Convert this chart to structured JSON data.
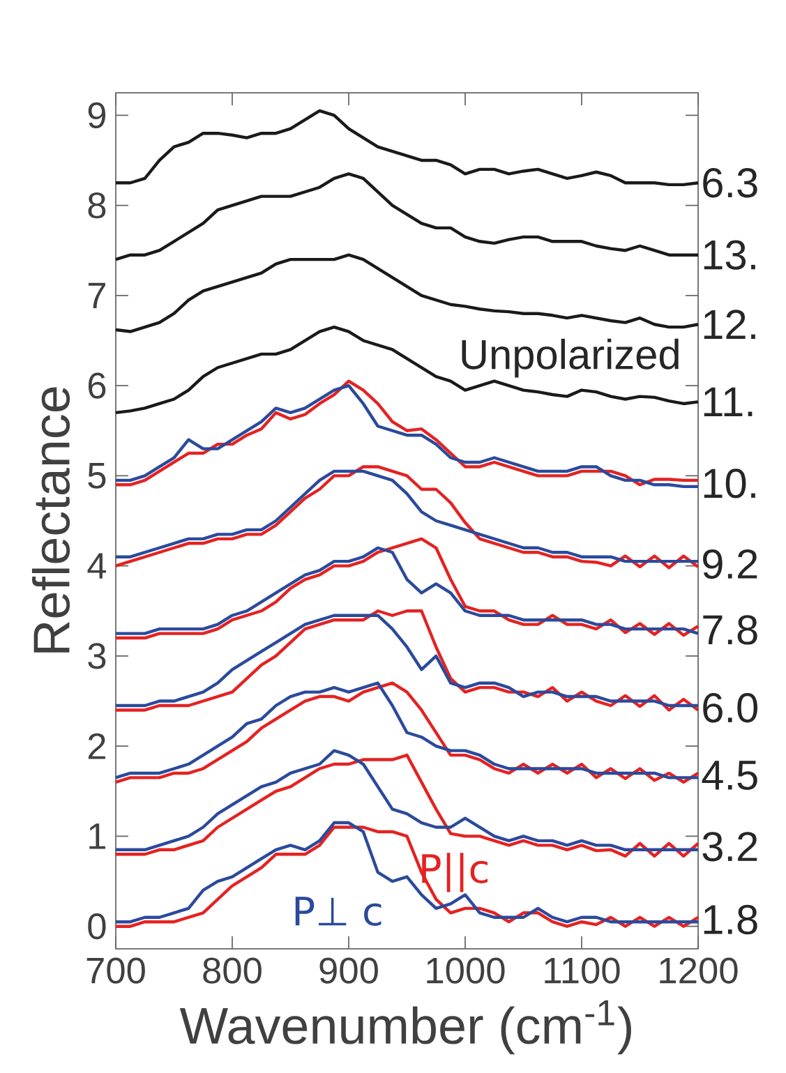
{
  "chart_data": {
    "type": "line",
    "xlabel": "Wavenumber (cm$^{-1}$)",
    "ylabel": "Reflectance",
    "xlim": [
      700,
      1200
    ],
    "ylim": [
      -0.25,
      9.25
    ],
    "xticks": [
      700,
      800,
      900,
      1000,
      1100,
      1200
    ],
    "yticks": [
      0,
      1,
      2,
      3,
      4,
      5,
      6,
      7,
      8,
      9
    ],
    "line_style": "solid",
    "x": [
      700,
      712.5,
      725,
      737.5,
      750,
      762.5,
      775,
      787.5,
      800,
      812.5,
      825,
      837.5,
      850,
      862.5,
      875,
      887.5,
      900,
      912.5,
      925,
      937.5,
      950,
      962.5,
      975,
      987.5,
      1000,
      1012.5,
      1025,
      1037.5,
      1050,
      1062.5,
      1075,
      1087.5,
      1100,
      1112.5,
      1125,
      1137.5,
      1150,
      1162.5,
      1175,
      1187.5,
      1200
    ],
    "series": [
      {
        "color": "#1a1a1a",
        "values": [
          8.25,
          8.25,
          8.3,
          8.5,
          8.65,
          8.7,
          8.8,
          8.8,
          8.78,
          8.75,
          8.8,
          8.8,
          8.85,
          8.95,
          9.05,
          9.0,
          8.85,
          8.75,
          8.65,
          8.6,
          8.55,
          8.5,
          8.5,
          8.45,
          8.35,
          8.4,
          8.4,
          8.35,
          8.38,
          8.4,
          8.35,
          8.3,
          8.33,
          8.37,
          8.33,
          8.25,
          8.25,
          8.25,
          8.23,
          8.23,
          8.25
        ]
      },
      {
        "color": "#1a1a1a",
        "values": [
          7.4,
          7.45,
          7.45,
          7.5,
          7.6,
          7.7,
          7.8,
          7.95,
          8.0,
          8.05,
          8.1,
          8.1,
          8.1,
          8.15,
          8.2,
          8.3,
          8.35,
          8.3,
          8.15,
          8.0,
          7.9,
          7.8,
          7.75,
          7.75,
          7.65,
          7.6,
          7.58,
          7.62,
          7.65,
          7.65,
          7.6,
          7.6,
          7.6,
          7.55,
          7.52,
          7.5,
          7.55,
          7.5,
          7.45,
          7.45,
          7.45
        ]
      },
      {
        "color": "#1a1a1a",
        "values": [
          6.62,
          6.6,
          6.65,
          6.7,
          6.8,
          6.95,
          7.05,
          7.1,
          7.15,
          7.2,
          7.25,
          7.35,
          7.4,
          7.4,
          7.4,
          7.4,
          7.45,
          7.4,
          7.3,
          7.2,
          7.1,
          7.0,
          6.95,
          6.9,
          6.88,
          6.85,
          6.83,
          6.82,
          6.8,
          6.8,
          6.78,
          6.75,
          6.78,
          6.75,
          6.72,
          6.7,
          6.75,
          6.68,
          6.65,
          6.65,
          6.68
        ]
      },
      {
        "color": "#1a1a1a",
        "values": [
          5.7,
          5.72,
          5.75,
          5.8,
          5.85,
          5.95,
          6.1,
          6.2,
          6.25,
          6.3,
          6.35,
          6.35,
          6.4,
          6.5,
          6.6,
          6.65,
          6.6,
          6.5,
          6.45,
          6.4,
          6.3,
          6.2,
          6.1,
          6.05,
          5.95,
          6.0,
          6.05,
          6.0,
          5.95,
          5.93,
          5.9,
          5.88,
          5.95,
          5.93,
          5.88,
          5.85,
          5.88,
          5.87,
          5.83,
          5.8,
          5.82
        ]
      },
      {
        "color": "#e32322",
        "values": [
          4.9,
          4.9,
          4.95,
          5.05,
          5.15,
          5.25,
          5.25,
          5.35,
          5.35,
          5.45,
          5.52,
          5.7,
          5.63,
          5.68,
          5.8,
          5.9,
          6.05,
          5.95,
          5.8,
          5.6,
          5.5,
          5.52,
          5.4,
          5.25,
          5.1,
          5.1,
          5.15,
          5.1,
          5.05,
          5.0,
          5.0,
          5.0,
          5.05,
          5.05,
          5.05,
          5.0,
          4.9,
          4.96,
          4.96,
          4.95,
          4.95
        ]
      },
      {
        "color": "#2b4a9c",
        "values": [
          4.95,
          4.95,
          5.0,
          5.1,
          5.2,
          5.4,
          5.3,
          5.3,
          5.4,
          5.5,
          5.6,
          5.75,
          5.7,
          5.75,
          5.85,
          5.95,
          6.0,
          5.8,
          5.55,
          5.5,
          5.45,
          5.45,
          5.35,
          5.2,
          5.15,
          5.15,
          5.2,
          5.15,
          5.1,
          5.05,
          5.05,
          5.05,
          5.1,
          5.1,
          5.0,
          4.95,
          4.95,
          4.9,
          4.9,
          4.88,
          4.88
        ]
      },
      {
        "color": "#e32322",
        "values": [
          4.0,
          4.05,
          4.1,
          4.15,
          4.2,
          4.25,
          4.25,
          4.3,
          4.3,
          4.35,
          4.35,
          4.45,
          4.6,
          4.75,
          4.85,
          5.0,
          5.0,
          5.1,
          5.1,
          5.05,
          5.0,
          4.85,
          4.85,
          4.7,
          4.48,
          4.3,
          4.25,
          4.2,
          4.15,
          4.15,
          4.1,
          4.1,
          4.05,
          4.04,
          4.0,
          4.11,
          3.99,
          4.11,
          3.98,
          4.11,
          3.99
        ]
      },
      {
        "color": "#2b4a9c",
        "values": [
          4.1,
          4.1,
          4.15,
          4.2,
          4.25,
          4.3,
          4.3,
          4.35,
          4.35,
          4.4,
          4.4,
          4.5,
          4.65,
          4.8,
          4.95,
          5.05,
          5.05,
          5.05,
          5.0,
          4.95,
          4.8,
          4.6,
          4.5,
          4.45,
          4.4,
          4.35,
          4.3,
          4.25,
          4.2,
          4.2,
          4.15,
          4.15,
          4.1,
          4.1,
          4.1,
          4.05,
          4.05,
          4.05,
          4.05,
          4.05,
          4.05
        ]
      },
      {
        "color": "#e32322",
        "values": [
          3.2,
          3.2,
          3.2,
          3.25,
          3.25,
          3.25,
          3.25,
          3.3,
          3.4,
          3.45,
          3.5,
          3.6,
          3.75,
          3.85,
          3.9,
          4.0,
          4.0,
          4.05,
          4.15,
          4.2,
          4.25,
          4.3,
          4.2,
          3.85,
          3.55,
          3.5,
          3.5,
          3.4,
          3.35,
          3.35,
          3.45,
          3.35,
          3.35,
          3.3,
          3.4,
          3.26,
          3.36,
          3.24,
          3.36,
          3.23,
          3.33
        ]
      },
      {
        "color": "#2b4a9c",
        "values": [
          3.25,
          3.25,
          3.25,
          3.3,
          3.3,
          3.3,
          3.3,
          3.35,
          3.45,
          3.5,
          3.6,
          3.7,
          3.8,
          3.9,
          3.95,
          4.05,
          4.05,
          4.1,
          4.2,
          4.15,
          3.85,
          3.7,
          3.8,
          3.7,
          3.5,
          3.45,
          3.45,
          3.45,
          3.4,
          3.4,
          3.4,
          3.4,
          3.4,
          3.35,
          3.35,
          3.3,
          3.3,
          3.3,
          3.3,
          3.3,
          3.25
        ]
      },
      {
        "color": "#e32322",
        "values": [
          2.4,
          2.4,
          2.4,
          2.45,
          2.45,
          2.45,
          2.5,
          2.55,
          2.6,
          2.75,
          2.9,
          3.0,
          3.15,
          3.3,
          3.35,
          3.4,
          3.4,
          3.4,
          3.5,
          3.45,
          3.5,
          3.5,
          3.1,
          2.75,
          2.6,
          2.65,
          2.65,
          2.6,
          2.6,
          2.55,
          2.65,
          2.5,
          2.6,
          2.5,
          2.45,
          2.56,
          2.44,
          2.56,
          2.4,
          2.52,
          2.4
        ]
      },
      {
        "color": "#2b4a9c",
        "values": [
          2.45,
          2.45,
          2.45,
          2.5,
          2.5,
          2.55,
          2.6,
          2.7,
          2.85,
          2.95,
          3.05,
          3.15,
          3.25,
          3.35,
          3.4,
          3.45,
          3.45,
          3.45,
          3.45,
          3.3,
          3.1,
          2.85,
          3.0,
          2.7,
          2.65,
          2.7,
          2.7,
          2.65,
          2.55,
          2.6,
          2.6,
          2.55,
          2.55,
          2.55,
          2.5,
          2.5,
          2.5,
          2.5,
          2.45,
          2.45,
          2.45
        ]
      },
      {
        "color": "#e32322",
        "values": [
          1.6,
          1.65,
          1.65,
          1.65,
          1.7,
          1.7,
          1.75,
          1.85,
          1.95,
          2.05,
          2.2,
          2.3,
          2.4,
          2.5,
          2.55,
          2.55,
          2.5,
          2.6,
          2.65,
          2.7,
          2.6,
          2.4,
          2.15,
          1.9,
          1.9,
          1.85,
          1.75,
          1.7,
          1.8,
          1.7,
          1.8,
          1.7,
          1.8,
          1.65,
          1.75,
          1.64,
          1.75,
          1.62,
          1.7,
          1.6,
          1.7
        ]
      },
      {
        "color": "#2b4a9c",
        "values": [
          1.65,
          1.7,
          1.7,
          1.7,
          1.75,
          1.8,
          1.9,
          2.0,
          2.1,
          2.25,
          2.3,
          2.45,
          2.55,
          2.6,
          2.6,
          2.65,
          2.6,
          2.65,
          2.7,
          2.45,
          2.15,
          2.1,
          2.0,
          1.95,
          1.95,
          1.9,
          1.8,
          1.75,
          1.75,
          1.75,
          1.75,
          1.75,
          1.75,
          1.7,
          1.7,
          1.7,
          1.7,
          1.7,
          1.65,
          1.65,
          1.65
        ]
      },
      {
        "color": "#e32322",
        "values": [
          0.8,
          0.8,
          0.8,
          0.85,
          0.85,
          0.9,
          0.95,
          1.1,
          1.2,
          1.3,
          1.4,
          1.5,
          1.55,
          1.65,
          1.75,
          1.8,
          1.8,
          1.85,
          1.85,
          1.85,
          1.9,
          1.6,
          1.3,
          1.03,
          1.0,
          1.0,
          0.95,
          0.9,
          0.95,
          0.9,
          0.9,
          0.85,
          0.9,
          0.84,
          0.85,
          0.78,
          0.92,
          0.78,
          0.92,
          0.78,
          0.92
        ]
      },
      {
        "color": "#2b4a9c",
        "values": [
          0.85,
          0.85,
          0.85,
          0.9,
          0.95,
          1.0,
          1.1,
          1.25,
          1.35,
          1.45,
          1.55,
          1.6,
          1.7,
          1.75,
          1.8,
          1.95,
          1.9,
          1.8,
          1.55,
          1.3,
          1.25,
          1.15,
          1.1,
          1.1,
          1.2,
          1.1,
          1.0,
          0.95,
          1.0,
          0.95,
          0.95,
          0.9,
          0.95,
          0.9,
          0.9,
          0.85,
          0.85,
          0.85,
          0.85,
          0.85,
          0.85
        ]
      },
      {
        "name": "P||c",
        "color": "#e32322",
        "values": [
          0.0,
          0.0,
          0.05,
          0.05,
          0.05,
          0.1,
          0.15,
          0.3,
          0.45,
          0.55,
          0.65,
          0.8,
          0.8,
          0.8,
          0.9,
          1.1,
          1.1,
          1.1,
          1.05,
          1.05,
          1.0,
          0.6,
          0.3,
          0.15,
          0.2,
          0.2,
          0.15,
          0.05,
          0.15,
          0.15,
          0.05,
          0.0,
          0.05,
          0.02,
          0.1,
          0.0,
          0.1,
          0.0,
          0.1,
          0.0,
          0.1
        ]
      },
      {
        "name": "P⊥ c",
        "color": "#2b4a9c",
        "values": [
          0.05,
          0.05,
          0.1,
          0.1,
          0.15,
          0.2,
          0.4,
          0.5,
          0.55,
          0.65,
          0.75,
          0.85,
          0.9,
          0.85,
          0.95,
          1.15,
          1.15,
          1.05,
          0.6,
          0.5,
          0.55,
          0.35,
          0.2,
          0.25,
          0.35,
          0.15,
          0.1,
          0.1,
          0.1,
          0.2,
          0.1,
          0.05,
          0.1,
          0.1,
          0.05,
          0.05,
          0.05,
          0.05,
          0.05,
          0.05,
          0.05
        ]
      }
    ],
    "annotations": [
      "6.3",
      "13.",
      "12.",
      "11.",
      "10.",
      "9.2",
      "7.8",
      "6.0",
      "4.5",
      "3.2",
      "1.8",
      "Unpolarized"
    ]
  }
}
